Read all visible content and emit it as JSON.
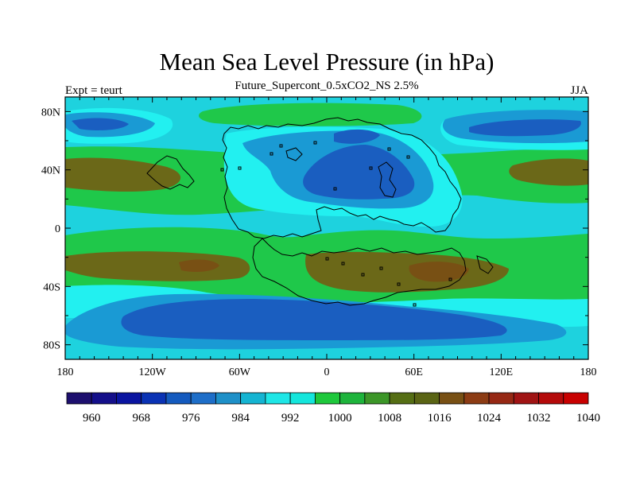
{
  "title": "Mean Sea Level Pressure (in hPa)",
  "subtitle": "Future_Supercont_0.5xCO2_NS 2.5%",
  "left_label": "Expt = teurt",
  "right_label": "JJA",
  "lat_ticks": [
    "80N",
    "40N",
    "0",
    "40S",
    "80S"
  ],
  "lon_ticks": [
    "180",
    "120W",
    "60W",
    "0",
    "60E",
    "120E",
    "180"
  ],
  "colorbar": {
    "colors": [
      "#1d0f6e",
      "#140f8a",
      "#0a14a0",
      "#0a32b4",
      "#145abe",
      "#1e6ec8",
      "#1e90c8",
      "#14b4d2",
      "#1ee6e6",
      "#14e6dc",
      "#1ec83c",
      "#1eb43c",
      "#3c9628",
      "#556e14",
      "#5a6414",
      "#785014",
      "#8c3c14",
      "#962814",
      "#a01414",
      "#b40a0a",
      "#c80000"
    ],
    "labels": [
      "960",
      "968",
      "976",
      "984",
      "992",
      "1000",
      "1008",
      "1016",
      "1024",
      "1032",
      "1040"
    ]
  },
  "field_colors": {
    "ocean": "#1ed2de",
    "cyan_light": "#22f0f0",
    "green": "#1fc84a",
    "brown": "#6b6818",
    "blue_mid": "#1a9ad4",
    "blue_dark": "#1a5ec0"
  }
}
